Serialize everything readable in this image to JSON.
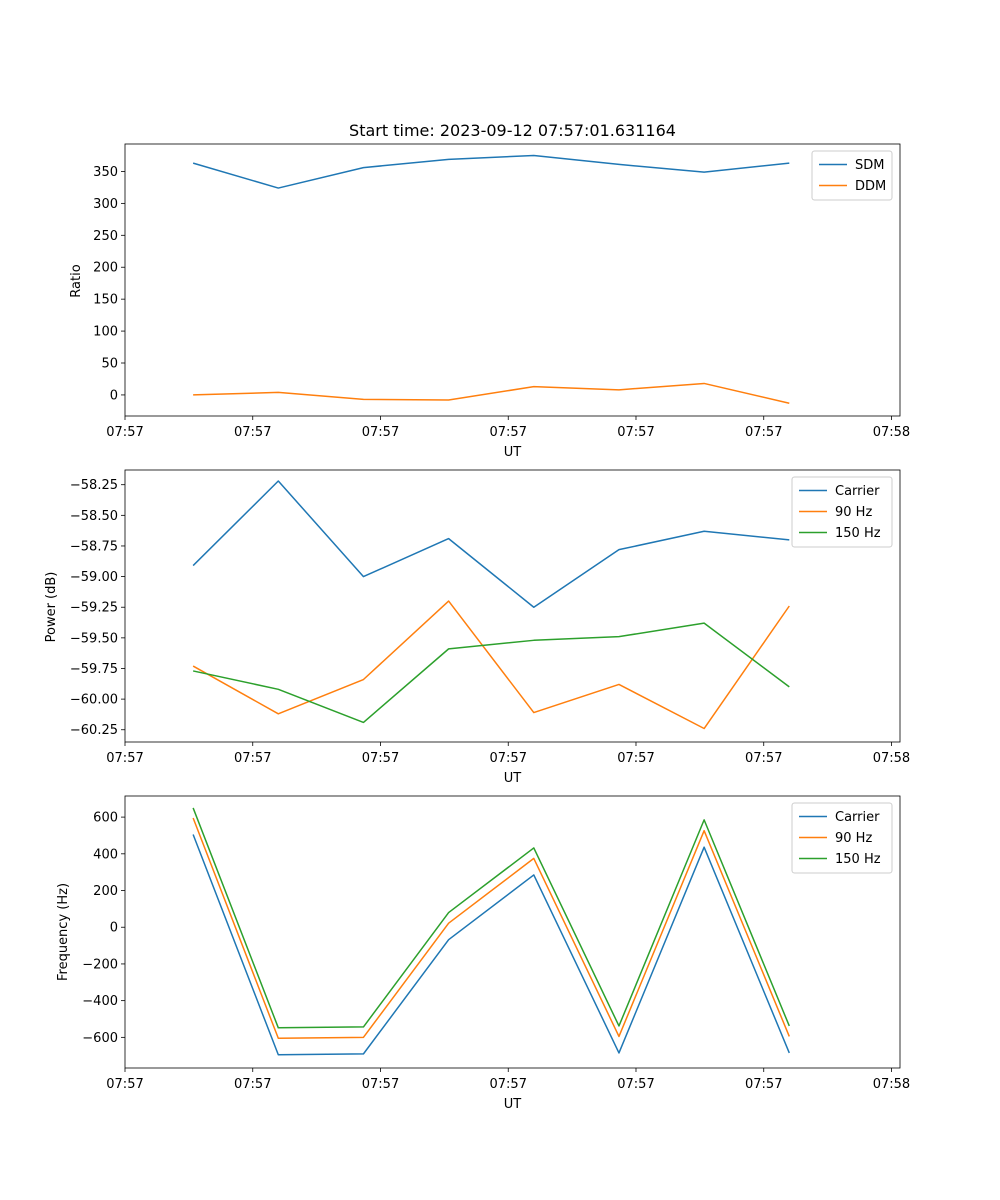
{
  "page": {
    "title": "Start time: 2023-09-12 07:57:01.631164"
  },
  "colors": {
    "blue": "#1f77b4",
    "orange": "#ff7f0e",
    "green": "#2ca02c"
  },
  "chart_data": [
    {
      "type": "line",
      "title": "Start time: 2023-09-12 07:57:01.631164",
      "xlabel": "UT",
      "ylabel": "Ratio",
      "x": [
        1,
        2,
        3,
        4,
        5,
        6,
        7,
        8
      ],
      "xlim": [
        0.2,
        9.3
      ],
      "xticks": [
        0.2,
        1.7,
        3.2,
        4.7,
        6.2,
        7.7,
        9.2
      ],
      "xtick_labels": [
        "07:57",
        "07:57",
        "07:57",
        "07:57",
        "07:57",
        "07:57",
        "07:58"
      ],
      "ylim": [
        -33,
        393
      ],
      "yticks": [
        0,
        50,
        100,
        150,
        200,
        250,
        300,
        350
      ],
      "ytick_labels": [
        "0",
        "50",
        "100",
        "150",
        "200",
        "250",
        "300",
        "350"
      ],
      "legend": "upper right",
      "series": [
        {
          "name": "SDM",
          "color": "#1f77b4",
          "values": [
            363,
            324,
            356,
            369,
            375,
            361,
            349,
            363
          ]
        },
        {
          "name": "DDM",
          "color": "#ff7f0e",
          "values": [
            0,
            4,
            -7,
            -8,
            13,
            8,
            18,
            -13
          ]
        }
      ]
    },
    {
      "type": "line",
      "title": "",
      "xlabel": "UT",
      "ylabel": "Power (dB)",
      "x": [
        1,
        2,
        3,
        4,
        5,
        6,
        7,
        8
      ],
      "xlim": [
        0.2,
        9.3
      ],
      "xticks": [
        0.2,
        1.7,
        3.2,
        4.7,
        6.2,
        7.7,
        9.2
      ],
      "xtick_labels": [
        "07:57",
        "07:57",
        "07:57",
        "07:57",
        "07:57",
        "07:57",
        "07:58"
      ],
      "ylim": [
        -60.35,
        -58.13
      ],
      "yticks": [
        -60.25,
        -60.0,
        -59.75,
        -59.5,
        -59.25,
        -59.0,
        -58.75,
        -58.5,
        -58.25
      ],
      "ytick_labels": [
        "−60.25",
        "−60.00",
        "−59.75",
        "−59.50",
        "−59.25",
        "−59.00",
        "−58.75",
        "−58.50",
        "−58.25"
      ],
      "legend": "upper right",
      "series": [
        {
          "name": "Carrier",
          "color": "#1f77b4",
          "values": [
            -58.91,
            -58.22,
            -59.0,
            -58.69,
            -59.25,
            -58.78,
            -58.63,
            -58.7
          ]
        },
        {
          "name": "90 Hz",
          "color": "#ff7f0e",
          "values": [
            -59.73,
            -60.12,
            -59.84,
            -59.2,
            -60.11,
            -59.88,
            -60.24,
            -59.24
          ]
        },
        {
          "name": "150 Hz",
          "color": "#2ca02c",
          "values": [
            -59.77,
            -59.92,
            -60.19,
            -59.59,
            -59.52,
            -59.49,
            -59.38,
            -59.9
          ]
        }
      ]
    },
    {
      "type": "line",
      "title": "",
      "xlabel": "UT",
      "ylabel": "Frequency (Hz)",
      "x": [
        1,
        2,
        3,
        4,
        5,
        6,
        7,
        8
      ],
      "xlim": [
        0.2,
        9.3
      ],
      "xticks": [
        0.2,
        1.7,
        3.2,
        4.7,
        6.2,
        7.7,
        9.2
      ],
      "xtick_labels": [
        "07:57",
        "07:57",
        "07:57",
        "07:57",
        "07:57",
        "07:57",
        "07:58"
      ],
      "ylim": [
        -767,
        715
      ],
      "yticks": [
        -600,
        -400,
        -200,
        0,
        200,
        400,
        600
      ],
      "ytick_labels": [
        "−600",
        "−400",
        "−200",
        "0",
        "200",
        "400",
        "600"
      ],
      "legend": "upper right",
      "series": [
        {
          "name": "Carrier",
          "color": "#1f77b4",
          "values": [
            505,
            -695,
            -690,
            -68,
            285,
            -685,
            436,
            -685
          ]
        },
        {
          "name": "90 Hz",
          "color": "#ff7f0e",
          "values": [
            595,
            -605,
            -600,
            22,
            375,
            -595,
            526,
            -595
          ]
        },
        {
          "name": "150 Hz",
          "color": "#2ca02c",
          "values": [
            650,
            -548,
            -543,
            80,
            432,
            -538,
            585,
            -538
          ]
        }
      ]
    }
  ]
}
